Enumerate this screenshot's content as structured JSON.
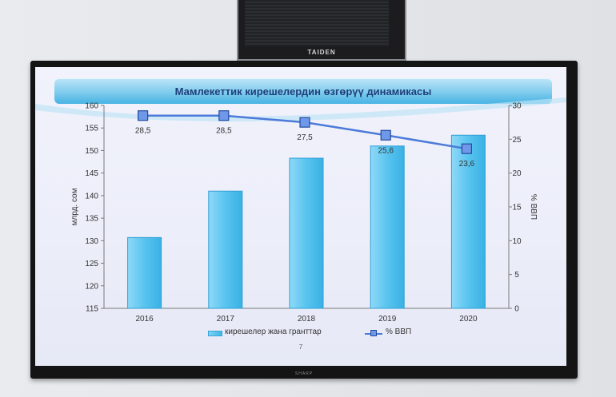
{
  "device": {
    "brand": "TAIDEN"
  },
  "tv": {
    "brand": "SHARP"
  },
  "chart_data": {
    "type": "bar",
    "title": "Мамлекеттик кирешелердин өзгөрүү динамикасы",
    "categories": [
      "2016",
      "2017",
      "2018",
      "2019",
      "2020"
    ],
    "ylabel": "млрд. сом",
    "y2label": "% ВВП",
    "ylim": [
      115,
      160
    ],
    "y2lim": [
      0,
      30
    ],
    "yticks": [
      "115",
      "120",
      "125",
      "130",
      "135",
      "140",
      "145",
      "150",
      "155",
      "160"
    ],
    "y2ticks": [
      "0",
      "5",
      "10",
      "15",
      "20",
      "25",
      "30"
    ],
    "series": [
      {
        "name": "кирешелер жана гранттар",
        "type": "bar",
        "axis": "left",
        "values": [
          130.7,
          141.0,
          148.3,
          151.0,
          153.4
        ]
      },
      {
        "name": "% ВВП",
        "type": "line",
        "axis": "right",
        "values": [
          28.5,
          28.5,
          27.5,
          25.6,
          23.6
        ],
        "labels": [
          "28,5",
          "28,5",
          "27,5",
          "25,6",
          "23,6"
        ]
      }
    ],
    "legend": "bottom",
    "colors": {
      "bar": "#52c3ee",
      "bar_edge": "#2f9fd6",
      "line": "#4b7ad8",
      "marker_fill": "#6f98e8",
      "marker_edge": "#234b9f"
    }
  },
  "page_number": "7"
}
